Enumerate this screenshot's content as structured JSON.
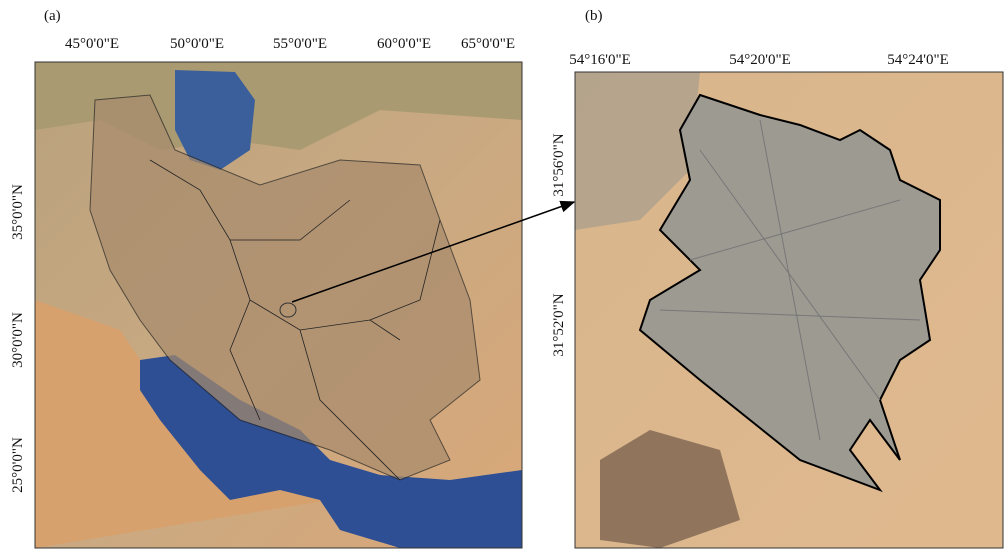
{
  "panel_a": {
    "label": "(a)",
    "x_labels": [
      "45°0'0\"E",
      "50°0'0\"E",
      "55°0'0\"E",
      "60°0'0\"E",
      "65°0'0\"E"
    ],
    "y_labels": [
      "35°0'0\"N",
      "30°0'0\"N",
      "25°0'0\"N"
    ]
  },
  "panel_b": {
    "label": "(b)",
    "x_labels": [
      "54°16'0\"E",
      "54°20'0\"E",
      "54°24'0\"E"
    ],
    "y_labels": [
      "31°56'0\"N",
      "31°52'0\"N"
    ]
  }
}
